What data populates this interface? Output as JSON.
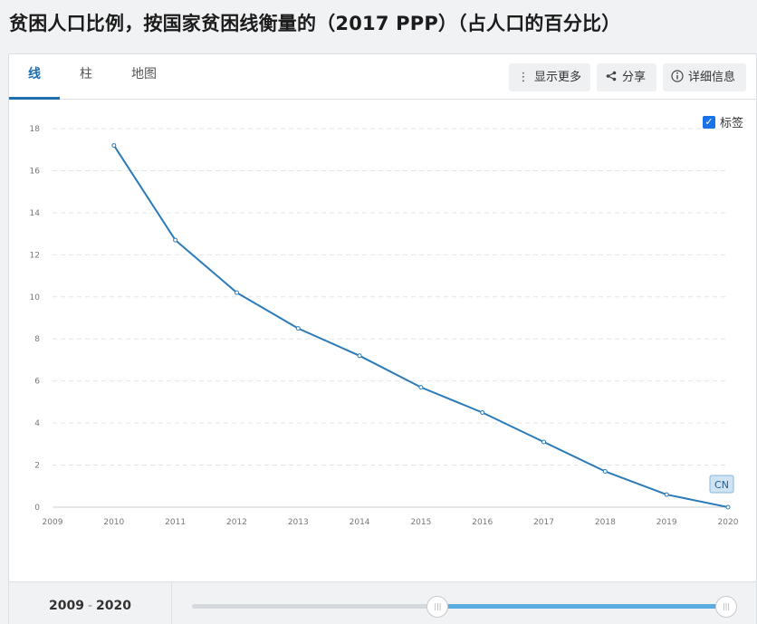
{
  "page": {
    "title": "贫困人口比例，按国家贫困线衡量的（2017 PPP）（占人口的百分比）"
  },
  "tabs": [
    {
      "label": "线",
      "active": true
    },
    {
      "label": "柱",
      "active": false
    },
    {
      "label": "地图",
      "active": false
    }
  ],
  "toolbar": {
    "more_label": "显示更多",
    "share_label": "分享",
    "details_label": "详细信息",
    "more_icon": "vertical-ellipsis-icon",
    "share_icon": "share-icon",
    "details_icon": "info-icon"
  },
  "label_toggle": {
    "label": "标签",
    "checked": true
  },
  "colors": {
    "line": "#2b7bb9",
    "accent": "#1e6fb0",
    "slider_fill": "#5aade0"
  },
  "chart_data": {
    "type": "line",
    "x": [
      2010,
      2011,
      2012,
      2013,
      2014,
      2015,
      2016,
      2017,
      2018,
      2019,
      2020
    ],
    "series": [
      {
        "name": "CN",
        "values": [
          17.2,
          12.7,
          10.2,
          8.5,
          7.2,
          5.7,
          4.5,
          3.1,
          1.7,
          0.6,
          0.0
        ]
      }
    ],
    "x_ticks": [
      "2009",
      "2010",
      "2011",
      "2012",
      "2013",
      "2014",
      "2015",
      "2016",
      "2017",
      "2018",
      "2019",
      "2020"
    ],
    "y_ticks": [
      "0",
      "2",
      "4",
      "6",
      "8",
      "10",
      "12",
      "14",
      "16",
      "18"
    ],
    "xlim": [
      2009,
      2020
    ],
    "ylim": [
      0,
      18
    ],
    "grid": true,
    "end_label": "CN"
  },
  "footer": {
    "range_start": "2009",
    "range_sep": "-",
    "range_end": "2020",
    "slider_start_fraction": 0.46,
    "slider_end_fraction": 1.0
  }
}
